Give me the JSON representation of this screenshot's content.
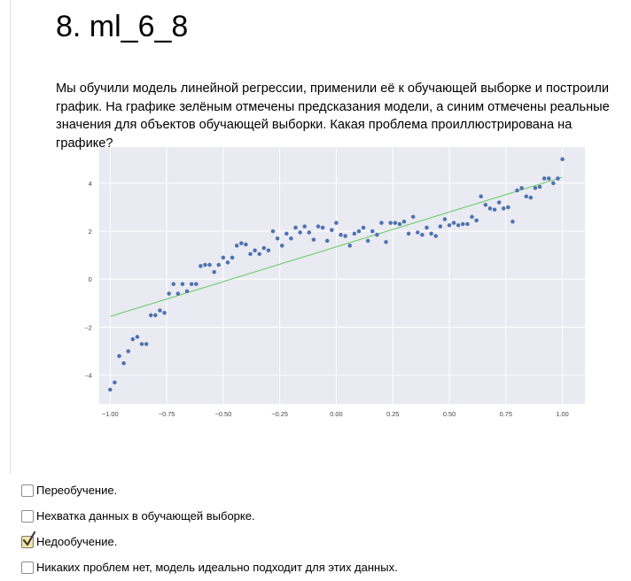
{
  "question": {
    "title": "8. ml_6_8",
    "text": "Мы обучили модель линейной регрессии, применили её к обучающей выборке и построили график. На графике зелёным отмечены предсказания модели, а синим отмечены реальные значения для объектов обучающей выборки. Какая проблема проиллюстрирована на графике?"
  },
  "options": [
    {
      "label": "Переобучение.",
      "checked": false
    },
    {
      "label": "Нехватка данных в обучающей выборке.",
      "checked": false
    },
    {
      "label": "Недообучение.",
      "checked": true
    },
    {
      "label": "Никаких проблем нет, модель идеально подходит для этих данных.",
      "checked": false
    }
  ],
  "colors": {
    "plot_background": "#eaeaf2",
    "grid": "#ffffff",
    "points": "#4c72b0",
    "fit_line": "#6acc65",
    "tick_text": "#444444",
    "check_mark": "#3a3a3a",
    "checked_box": "#f3e6a8"
  },
  "icons": {
    "checked_icon": "check-mark-icon"
  },
  "chart_data": {
    "type": "scatter",
    "title": "",
    "xlabel": "",
    "ylabel": "",
    "xlim": [
      -1.05,
      1.1
    ],
    "ylim": [
      -5.2,
      5.5
    ],
    "xticks": [
      -1.0,
      -0.75,
      -0.5,
      -0.25,
      0.0,
      0.25,
      0.5,
      0.75,
      1.0
    ],
    "xtick_labels": [
      "−1.00",
      "−0.75",
      "−0.50",
      "−0.25",
      "0.00",
      "0.25",
      "0.50",
      "0.75",
      "1.00"
    ],
    "yticks": [
      -4,
      -2,
      0,
      2,
      4
    ],
    "ytick_labels": [
      "−4",
      "−2",
      "0",
      "2",
      "4"
    ],
    "grid": true,
    "legend": "none",
    "series": [
      {
        "kind": "points",
        "color": "#4c72b0",
        "x": [
          -1.0,
          -0.98,
          -0.96,
          -0.94,
          -0.92,
          -0.9,
          -0.88,
          -0.86,
          -0.84,
          -0.82,
          -0.8,
          -0.78,
          -0.76,
          -0.74,
          -0.72,
          -0.7,
          -0.68,
          -0.66,
          -0.64,
          -0.62,
          -0.6,
          -0.58,
          -0.56,
          -0.54,
          -0.52,
          -0.5,
          -0.48,
          -0.46,
          -0.44,
          -0.42,
          -0.4,
          -0.38,
          -0.36,
          -0.34,
          -0.32,
          -0.3,
          -0.28,
          -0.26,
          -0.24,
          -0.22,
          -0.2,
          -0.18,
          -0.16,
          -0.14,
          -0.12,
          -0.1,
          -0.08,
          -0.06,
          -0.04,
          -0.02,
          0.0,
          0.02,
          0.04,
          0.06,
          0.08,
          0.1,
          0.12,
          0.14,
          0.16,
          0.18,
          0.2,
          0.22,
          0.24,
          0.26,
          0.28,
          0.3,
          0.32,
          0.34,
          0.36,
          0.38,
          0.4,
          0.42,
          0.44,
          0.46,
          0.48,
          0.5,
          0.52,
          0.54,
          0.56,
          0.58,
          0.6,
          0.62,
          0.64,
          0.66,
          0.68,
          0.7,
          0.72,
          0.74,
          0.76,
          0.78,
          0.8,
          0.82,
          0.84,
          0.86,
          0.88,
          0.9,
          0.92,
          0.94,
          0.96,
          0.98,
          1.0
        ],
        "y": [
          -4.6,
          -4.3,
          -3.2,
          -3.5,
          -3.0,
          -2.5,
          -2.4,
          -2.7,
          -2.7,
          -1.5,
          -1.5,
          -1.3,
          -1.4,
          -0.6,
          -0.2,
          -0.6,
          -0.2,
          -0.5,
          -0.2,
          -0.2,
          0.55,
          0.6,
          0.6,
          0.3,
          0.6,
          0.9,
          0.7,
          0.9,
          1.4,
          1.5,
          1.45,
          1.05,
          1.2,
          1.05,
          1.3,
          1.2,
          2.0,
          1.7,
          1.4,
          1.9,
          1.7,
          2.15,
          1.95,
          2.2,
          1.95,
          1.65,
          2.2,
          2.15,
          1.6,
          2.05,
          2.35,
          1.85,
          1.8,
          1.4,
          1.9,
          2.0,
          2.15,
          1.6,
          2.0,
          1.85,
          2.35,
          1.55,
          2.35,
          2.35,
          2.3,
          2.4,
          1.9,
          2.6,
          1.95,
          1.85,
          2.15,
          1.9,
          1.8,
          2.2,
          2.5,
          2.25,
          2.35,
          2.25,
          2.3,
          2.3,
          2.6,
          2.45,
          3.45,
          3.1,
          2.95,
          2.9,
          3.2,
          2.95,
          3.0,
          2.4,
          3.7,
          3.8,
          3.45,
          3.4,
          3.8,
          3.85,
          4.2,
          4.2,
          4.0,
          4.2,
          5.0
        ]
      },
      {
        "kind": "line",
        "color": "#6acc65",
        "x": [
          -1.0,
          1.0
        ],
        "y": [
          -1.55,
          4.25
        ]
      }
    ]
  }
}
